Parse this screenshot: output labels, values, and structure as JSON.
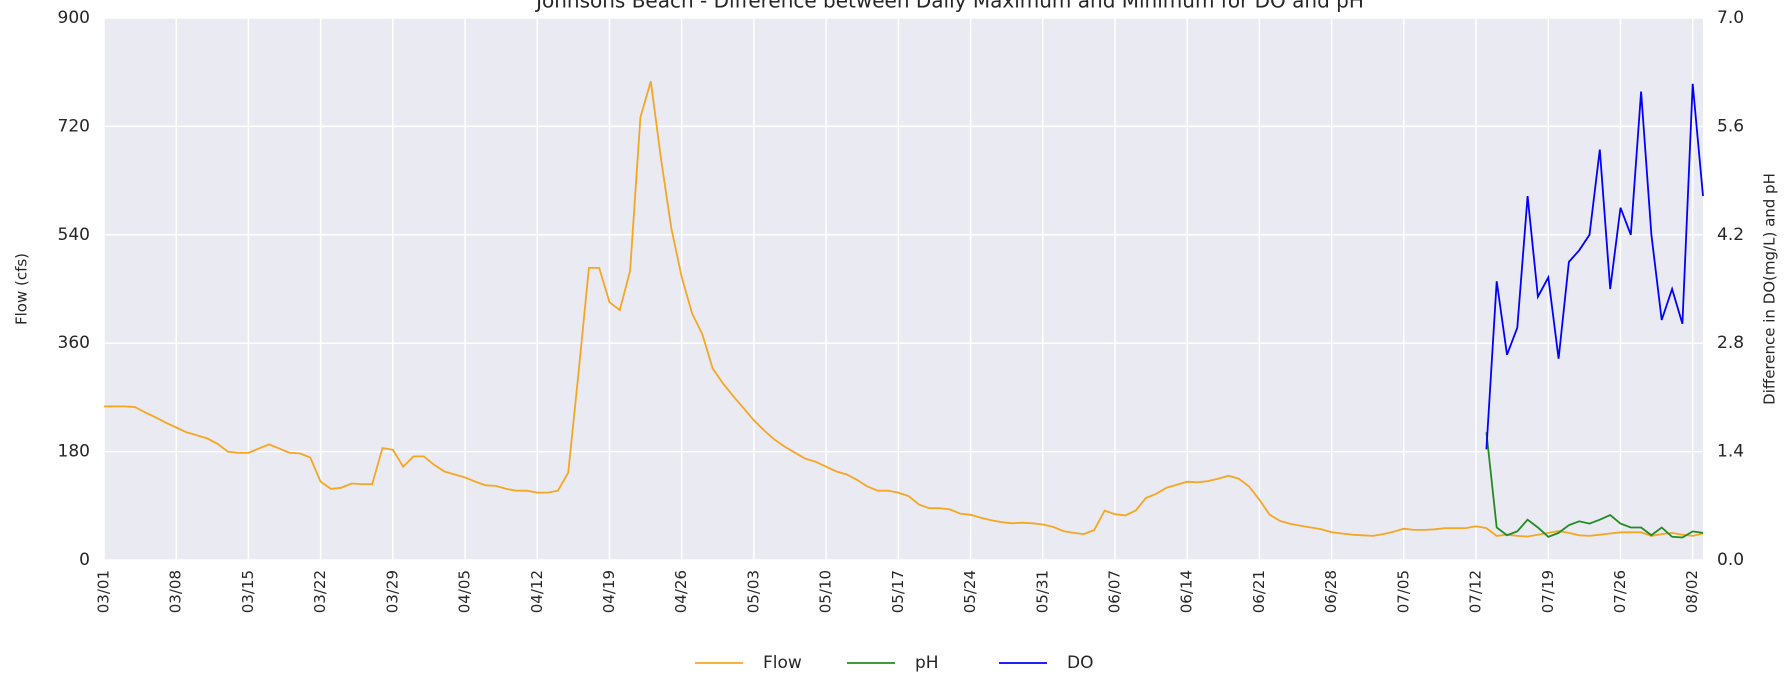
{
  "chart_data": {
    "type": "line",
    "title": "Johnsons Beach - Difference between Daily Maximum and Minimum for DO and pH",
    "y_label": "Flow (cfs)",
    "y2_label": "Difference in DO(mg/L) and pH",
    "x": [
      "03/01",
      "03/02",
      "03/03",
      "03/04",
      "03/05",
      "03/06",
      "03/07",
      "03/08",
      "03/09",
      "03/10",
      "03/11",
      "03/12",
      "03/13",
      "03/14",
      "03/15",
      "03/16",
      "03/17",
      "03/18",
      "03/19",
      "03/20",
      "03/21",
      "03/22",
      "03/23",
      "03/24",
      "03/25",
      "03/26",
      "03/27",
      "03/28",
      "03/29",
      "03/30",
      "03/31",
      "04/01",
      "04/02",
      "04/03",
      "04/04",
      "04/05",
      "04/06",
      "04/07",
      "04/08",
      "04/09",
      "04/10",
      "04/11",
      "04/12",
      "04/13",
      "04/14",
      "04/15",
      "04/16",
      "04/17",
      "04/18",
      "04/19",
      "04/20",
      "04/21",
      "04/22",
      "04/23",
      "04/24",
      "04/25",
      "04/26",
      "04/27",
      "04/28",
      "04/29",
      "04/30",
      "05/01",
      "05/02",
      "05/03",
      "05/04",
      "05/05",
      "05/06",
      "05/07",
      "05/08",
      "05/09",
      "05/10",
      "05/11",
      "05/12",
      "05/13",
      "05/14",
      "05/15",
      "05/16",
      "05/17",
      "05/18",
      "05/19",
      "05/20",
      "05/21",
      "05/22",
      "05/23",
      "05/24",
      "05/25",
      "05/26",
      "05/27",
      "05/28",
      "05/29",
      "05/30",
      "05/31",
      "06/01",
      "06/02",
      "06/03",
      "06/04",
      "06/05",
      "06/06",
      "06/07",
      "06/08",
      "06/09",
      "06/10",
      "06/11",
      "06/12",
      "06/13",
      "06/14",
      "06/15",
      "06/16",
      "06/17",
      "06/18",
      "06/19",
      "06/20",
      "06/21",
      "06/22",
      "06/23",
      "06/24",
      "06/25",
      "06/26",
      "06/27",
      "06/28",
      "06/29",
      "06/30",
      "07/01",
      "07/02",
      "07/03",
      "07/04",
      "07/05",
      "07/06",
      "07/07",
      "07/08",
      "07/09",
      "07/10",
      "07/11",
      "07/12",
      "07/13",
      "07/14",
      "07/15",
      "07/16",
      "07/17",
      "07/18",
      "07/19",
      "07/20",
      "07/21",
      "07/22",
      "07/23",
      "07/24",
      "07/25",
      "07/26",
      "07/27",
      "07/28",
      "07/29",
      "07/30",
      "07/31",
      "08/01",
      "08/02",
      "08/03"
    ],
    "xticks": [
      "03/01",
      "03/08",
      "03/15",
      "03/22",
      "03/29",
      "04/05",
      "04/12",
      "04/19",
      "04/26",
      "05/03",
      "05/10",
      "05/17",
      "05/24",
      "05/31",
      "06/07",
      "06/14",
      "06/21",
      "06/28",
      "07/05",
      "07/12",
      "07/19",
      "07/26",
      "08/02"
    ],
    "series": [
      {
        "name": "Flow",
        "color": "#f5a623",
        "values": [
          255,
          255,
          255,
          254,
          245,
          237,
          228,
          220,
          212,
          207,
          202,
          193,
          180,
          178,
          178,
          185,
          192,
          185,
          178,
          177,
          170,
          130,
          118,
          120,
          127,
          126,
          126,
          186,
          183,
          155,
          172,
          172,
          158,
          147,
          142,
          137,
          130,
          124,
          123,
          118,
          115,
          115,
          112,
          112,
          115,
          145,
          310,
          485,
          485,
          428,
          415,
          480,
          735,
          795,
          665,
          550,
          470,
          410,
          375,
          318,
          293,
          272,
          252,
          232,
          215,
          200,
          188,
          178,
          168,
          163,
          155,
          147,
          142,
          133,
          122,
          115,
          115,
          112,
          106,
          92,
          86,
          86,
          84,
          77,
          75,
          70,
          66,
          63,
          61,
          62,
          61,
          59,
          55,
          48,
          45,
          43,
          50,
          82,
          76,
          74,
          82,
          103,
          110,
          120,
          125,
          130,
          129,
          131,
          135,
          140,
          135,
          122,
          100,
          75,
          65,
          60,
          57,
          54,
          51,
          46,
          44,
          42,
          41,
          40,
          43,
          47,
          52,
          50,
          50,
          51,
          53,
          53,
          53,
          56,
          53,
          40,
          42,
          40,
          39,
          42,
          45,
          48,
          45,
          41,
          40,
          42,
          44,
          46,
          46,
          46,
          40,
          43,
          45,
          42,
          40,
          44
        ]
      },
      {
        "name": "pH",
        "color": "#228b22",
        "axis": "y2",
        "x": [
          "07/13",
          "07/14",
          "07/15",
          "07/16",
          "07/17",
          "07/18",
          "07/19",
          "07/20",
          "07/21",
          "07/22",
          "07/23",
          "07/24",
          "07/25",
          "07/26",
          "07/27",
          "07/28",
          "07/29",
          "07/30",
          "07/31",
          "08/01",
          "08/02",
          "08/03"
        ],
        "values": [
          1.65,
          0.42,
          0.32,
          0.37,
          0.52,
          0.42,
          0.3,
          0.35,
          0.45,
          0.5,
          0.47,
          0.52,
          0.58,
          0.47,
          0.42,
          0.42,
          0.32,
          0.42,
          0.3,
          0.29,
          0.37,
          0.35
        ]
      },
      {
        "name": "DO",
        "color": "#0000ff",
        "axis": "y2",
        "x": [
          "07/13",
          "07/14",
          "07/15",
          "07/16",
          "07/17",
          "07/18",
          "07/19",
          "07/20",
          "07/21",
          "07/22",
          "07/23",
          "07/24",
          "07/25",
          "07/26",
          "07/27",
          "07/28",
          "07/29",
          "07/30",
          "07/31",
          "08/01",
          "08/02",
          "08/03"
        ],
        "values": [
          1.43,
          3.6,
          2.65,
          3.0,
          4.7,
          3.4,
          3.65,
          2.6,
          3.85,
          4.0,
          4.2,
          5.3,
          3.5,
          4.55,
          4.2,
          6.05,
          4.2,
          3.1,
          3.5,
          3.05,
          6.15,
          4.7
        ]
      }
    ],
    "ylim": [
      0,
      900
    ],
    "yticks": [
      0,
      180,
      360,
      540,
      720,
      900
    ],
    "y2lim": [
      0,
      7
    ],
    "y2ticks": [
      {
        "value": 0,
        "label": "0.0"
      },
      1.4,
      2.8,
      4.2,
      5.6,
      {
        "value": 7,
        "label": "7.0"
      }
    ],
    "grid": true,
    "legend": "bottom"
  }
}
